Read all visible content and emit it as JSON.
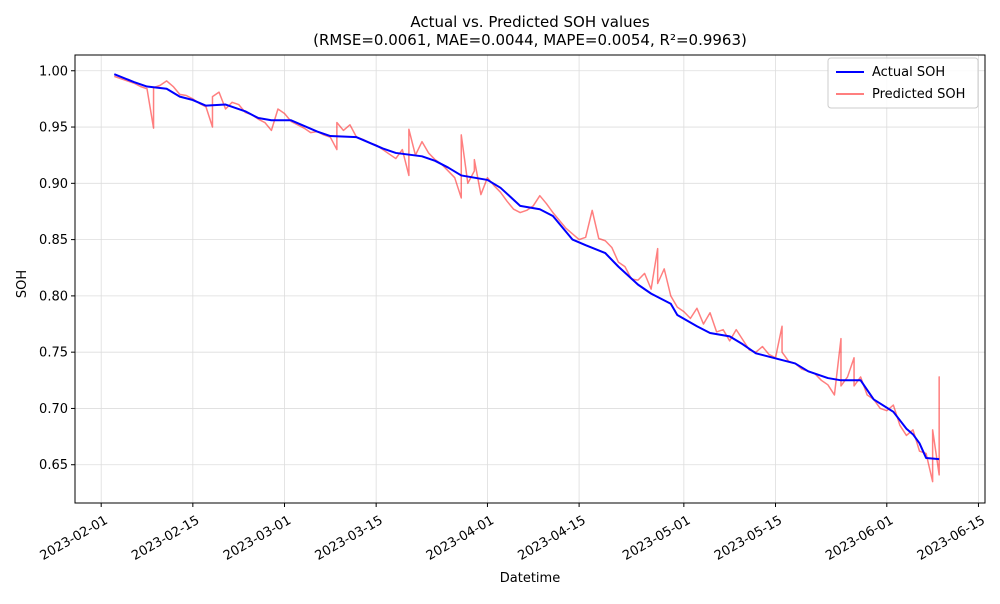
{
  "chart_data": {
    "type": "line",
    "title": "Actual vs. Predicted SOH values",
    "subtitle": "(RMSE=0.0061, MAE=0.0044, MAPE=0.0054, R²=0.9963)",
    "xlabel": "Datetime",
    "ylabel": "SOH",
    "xlim": [
      "2023-01-28",
      "2023-06-16"
    ],
    "ylim": [
      0.616,
      1.014
    ],
    "x_ticks": [
      "2023-02-01",
      "2023-02-15",
      "2023-03-01",
      "2023-03-15",
      "2023-04-01",
      "2023-04-15",
      "2023-05-01",
      "2023-05-15",
      "2023-06-01",
      "2023-06-15"
    ],
    "y_ticks": [
      "0.65",
      "0.70",
      "0.75",
      "0.80",
      "0.85",
      "0.90",
      "0.95",
      "1.00"
    ],
    "grid": true,
    "legend_position": "top-right",
    "series": [
      {
        "name": "Actual SOH",
        "color": "#0000ff",
        "points": [
          [
            "2023-02-03",
            0.997
          ],
          [
            "2023-02-06",
            0.99
          ],
          [
            "2023-02-08",
            0.986
          ],
          [
            "2023-02-11",
            0.984
          ],
          [
            "2023-02-13",
            0.977
          ],
          [
            "2023-02-15",
            0.974
          ],
          [
            "2023-02-17",
            0.969
          ],
          [
            "2023-02-20",
            0.97
          ],
          [
            "2023-02-23",
            0.964
          ],
          [
            "2023-02-25",
            0.958
          ],
          [
            "2023-02-27",
            0.956
          ],
          [
            "2023-03-02",
            0.956
          ],
          [
            "2023-03-04",
            0.951
          ],
          [
            "2023-03-06",
            0.946
          ],
          [
            "2023-03-08",
            0.942
          ],
          [
            "2023-03-12",
            0.941
          ],
          [
            "2023-03-16",
            0.931
          ],
          [
            "2023-03-18",
            0.927
          ],
          [
            "2023-03-22",
            0.924
          ],
          [
            "2023-03-24",
            0.92
          ],
          [
            "2023-03-26",
            0.914
          ],
          [
            "2023-03-28",
            0.907
          ],
          [
            "2023-04-01",
            0.903
          ],
          [
            "2023-04-03",
            0.896
          ],
          [
            "2023-04-06",
            0.88
          ],
          [
            "2023-04-09",
            0.877
          ],
          [
            "2023-04-11",
            0.871
          ],
          [
            "2023-04-14",
            0.85
          ],
          [
            "2023-04-16",
            0.845
          ],
          [
            "2023-04-19",
            0.838
          ],
          [
            "2023-04-21",
            0.826
          ],
          [
            "2023-04-24",
            0.81
          ],
          [
            "2023-04-26",
            0.802
          ],
          [
            "2023-04-29",
            0.793
          ],
          [
            "2023-04-30",
            0.783
          ],
          [
            "2023-05-03",
            0.773
          ],
          [
            "2023-05-05",
            0.767
          ],
          [
            "2023-05-08",
            0.764
          ],
          [
            "2023-05-10",
            0.757
          ],
          [
            "2023-05-12",
            0.749
          ],
          [
            "2023-05-16",
            0.743
          ],
          [
            "2023-05-18",
            0.74
          ],
          [
            "2023-05-20",
            0.733
          ],
          [
            "2023-05-23",
            0.727
          ],
          [
            "2023-05-25",
            0.725
          ],
          [
            "2023-05-28",
            0.725
          ],
          [
            "2023-05-30",
            0.708
          ],
          [
            "2023-06-02",
            0.697
          ],
          [
            "2023-06-04",
            0.682
          ],
          [
            "2023-06-05",
            0.677
          ],
          [
            "2023-06-06",
            0.669
          ],
          [
            "2023-06-07",
            0.656
          ],
          [
            "2023-06-09",
            0.655
          ]
        ]
      },
      {
        "name": "Predicted SOH",
        "color": "#ff0000",
        "opacity": 0.5,
        "points": [
          [
            "2023-02-03",
            0.995
          ],
          [
            "2023-02-04",
            0.993
          ],
          [
            "2023-02-05",
            0.991
          ],
          [
            "2023-02-06",
            0.989
          ],
          [
            "2023-02-07",
            0.986
          ],
          [
            "2023-02-08",
            0.984
          ],
          [
            "2023-02-09",
            0.949
          ],
          [
            "2023-02-09",
            0.985
          ],
          [
            "2023-02-10",
            0.987
          ],
          [
            "2023-02-11",
            0.991
          ],
          [
            "2023-02-12",
            0.986
          ],
          [
            "2023-02-13",
            0.979
          ],
          [
            "2023-02-14",
            0.978
          ],
          [
            "2023-02-15",
            0.975
          ],
          [
            "2023-02-16",
            0.971
          ],
          [
            "2023-02-17",
            0.968
          ],
          [
            "2023-02-18",
            0.95
          ],
          [
            "2023-02-18",
            0.977
          ],
          [
            "2023-02-19",
            0.981
          ],
          [
            "2023-02-20",
            0.966
          ],
          [
            "2023-02-21",
            0.972
          ],
          [
            "2023-02-22",
            0.97
          ],
          [
            "2023-02-23",
            0.963
          ],
          [
            "2023-02-24",
            0.961
          ],
          [
            "2023-02-25",
            0.957
          ],
          [
            "2023-02-26",
            0.954
          ],
          [
            "2023-02-27",
            0.947
          ],
          [
            "2023-02-28",
            0.966
          ],
          [
            "2023-03-01",
            0.962
          ],
          [
            "2023-03-02",
            0.955
          ],
          [
            "2023-03-03",
            0.952
          ],
          [
            "2023-03-04",
            0.949
          ],
          [
            "2023-03-05",
            0.945
          ],
          [
            "2023-03-06",
            0.946
          ],
          [
            "2023-03-07",
            0.943
          ],
          [
            "2023-03-08",
            0.941
          ],
          [
            "2023-03-09",
            0.93
          ],
          [
            "2023-03-09",
            0.954
          ],
          [
            "2023-03-10",
            0.947
          ],
          [
            "2023-03-11",
            0.952
          ],
          [
            "2023-03-12",
            0.941
          ],
          [
            "2023-03-13",
            0.939
          ],
          [
            "2023-03-14",
            0.936
          ],
          [
            "2023-03-15",
            0.934
          ],
          [
            "2023-03-16",
            0.93
          ],
          [
            "2023-03-17",
            0.926
          ],
          [
            "2023-03-18",
            0.922
          ],
          [
            "2023-03-19",
            0.93
          ],
          [
            "2023-03-20",
            0.907
          ],
          [
            "2023-03-20",
            0.948
          ],
          [
            "2023-03-21",
            0.925
          ],
          [
            "2023-03-22",
            0.937
          ],
          [
            "2023-03-23",
            0.927
          ],
          [
            "2023-03-24",
            0.921
          ],
          [
            "2023-03-25",
            0.917
          ],
          [
            "2023-03-26",
            0.911
          ],
          [
            "2023-03-27",
            0.905
          ],
          [
            "2023-03-28",
            0.887
          ],
          [
            "2023-03-28",
            0.943
          ],
          [
            "2023-03-29",
            0.9
          ],
          [
            "2023-03-30",
            0.911
          ],
          [
            "2023-03-30",
            0.921
          ],
          [
            "2023-03-31",
            0.89
          ],
          [
            "2023-04-01",
            0.905
          ],
          [
            "2023-04-02",
            0.898
          ],
          [
            "2023-04-03",
            0.892
          ],
          [
            "2023-04-04",
            0.884
          ],
          [
            "2023-04-05",
            0.877
          ],
          [
            "2023-04-06",
            0.874
          ],
          [
            "2023-04-07",
            0.876
          ],
          [
            "2023-04-08",
            0.88
          ],
          [
            "2023-04-09",
            0.889
          ],
          [
            "2023-04-10",
            0.882
          ],
          [
            "2023-04-11",
            0.874
          ],
          [
            "2023-04-12",
            0.867
          ],
          [
            "2023-04-13",
            0.86
          ],
          [
            "2023-04-14",
            0.855
          ],
          [
            "2023-04-15",
            0.85
          ],
          [
            "2023-04-16",
            0.852
          ],
          [
            "2023-04-17",
            0.876
          ],
          [
            "2023-04-18",
            0.851
          ],
          [
            "2023-04-19",
            0.849
          ],
          [
            "2023-04-20",
            0.843
          ],
          [
            "2023-04-21",
            0.83
          ],
          [
            "2023-04-22",
            0.826
          ],
          [
            "2023-04-23",
            0.815
          ],
          [
            "2023-04-24",
            0.814
          ],
          [
            "2023-04-25",
            0.82
          ],
          [
            "2023-04-26",
            0.806
          ],
          [
            "2023-04-27",
            0.842
          ],
          [
            "2023-04-27",
            0.811
          ],
          [
            "2023-04-28",
            0.824
          ],
          [
            "2023-04-29",
            0.8
          ],
          [
            "2023-04-30",
            0.79
          ],
          [
            "2023-05-01",
            0.786
          ],
          [
            "2023-05-02",
            0.78
          ],
          [
            "2023-05-03",
            0.789
          ],
          [
            "2023-05-04",
            0.775
          ],
          [
            "2023-05-05",
            0.785
          ],
          [
            "2023-05-06",
            0.768
          ],
          [
            "2023-05-07",
            0.77
          ],
          [
            "2023-05-08",
            0.76
          ],
          [
            "2023-05-09",
            0.77
          ],
          [
            "2023-05-10",
            0.761
          ],
          [
            "2023-05-11",
            0.752
          ],
          [
            "2023-05-12",
            0.75
          ],
          [
            "2023-05-13",
            0.755
          ],
          [
            "2023-05-14",
            0.748
          ],
          [
            "2023-05-15",
            0.745
          ],
          [
            "2023-05-16",
            0.773
          ],
          [
            "2023-05-16",
            0.75
          ],
          [
            "2023-05-17",
            0.742
          ],
          [
            "2023-05-18",
            0.74
          ],
          [
            "2023-05-19",
            0.735
          ],
          [
            "2023-05-20",
            0.733
          ],
          [
            "2023-05-21",
            0.731
          ],
          [
            "2023-05-22",
            0.725
          ],
          [
            "2023-05-23",
            0.721
          ],
          [
            "2023-05-24",
            0.712
          ],
          [
            "2023-05-25",
            0.762
          ],
          [
            "2023-05-25",
            0.72
          ],
          [
            "2023-05-26",
            0.728
          ],
          [
            "2023-05-27",
            0.745
          ],
          [
            "2023-05-27",
            0.72
          ],
          [
            "2023-05-28",
            0.728
          ],
          [
            "2023-05-29",
            0.712
          ],
          [
            "2023-05-30",
            0.708
          ],
          [
            "2023-05-31",
            0.7
          ],
          [
            "2023-06-01",
            0.698
          ],
          [
            "2023-06-02",
            0.703
          ],
          [
            "2023-06-03",
            0.685
          ],
          [
            "2023-06-04",
            0.676
          ],
          [
            "2023-06-05",
            0.681
          ],
          [
            "2023-06-06",
            0.662
          ],
          [
            "2023-06-07",
            0.66
          ],
          [
            "2023-06-08",
            0.635
          ],
          [
            "2023-06-08",
            0.681
          ],
          [
            "2023-06-09",
            0.641
          ],
          [
            "2023-06-09",
            0.728
          ],
          [
            "2023-06-09",
            0.655
          ]
        ]
      }
    ]
  }
}
